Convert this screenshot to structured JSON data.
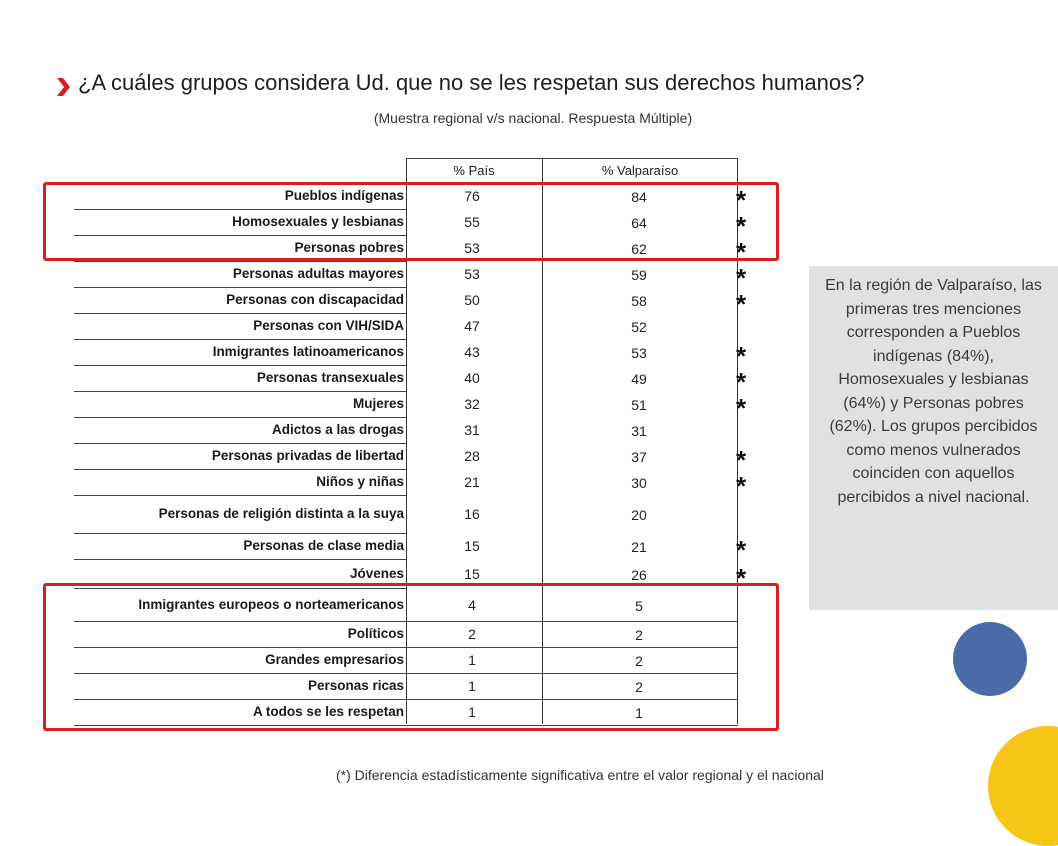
{
  "title": "¿A cuáles grupos considera Ud. que no se les respetan sus derechos humanos?",
  "subtitle": "(Muestra regional v/s nacional. Respuesta Múltiple)",
  "footnote": "(*) Diferencia estadísticamente significativa entre el valor regional y el nacional",
  "note": "En la región de Valparaíso, las primeras tres menciones corresponden a Pueblos indígenas (84%), Homosexuales y lesbianas (64%) y Personas pobres (62%). Los grupos percibidos como menos vulnerados coinciden con aquellos percibidos a nivel nacional.",
  "colors": {
    "highlight": "#d42020",
    "note_bg": "#e1e1e1",
    "circle_blue": "#4a6aa8",
    "circle_yellow": "#f5c518"
  },
  "chart_data": {
    "type": "table",
    "columns": [
      "% País",
      "% Valparaíso"
    ],
    "significance_marker": "*",
    "rows": [
      {
        "category": "Pueblos indígenas",
        "pais": 76,
        "valparaiso": 84,
        "sig": "*"
      },
      {
        "category": "Homosexuales y lesbianas",
        "pais": 55,
        "valparaiso": 64,
        "sig": "*"
      },
      {
        "category": "Personas pobres",
        "pais": 53,
        "valparaiso": 62,
        "sig": "*"
      },
      {
        "category": "Personas adultas mayores",
        "pais": 53,
        "valparaiso": 59,
        "sig": "*"
      },
      {
        "category": "Personas con discapacidad",
        "pais": 50,
        "valparaiso": 58,
        "sig": "*"
      },
      {
        "category": "Personas con VIH/SIDA",
        "pais": 47,
        "valparaiso": 52,
        "sig": ""
      },
      {
        "category": "Inmigrantes latinoamericanos",
        "pais": 43,
        "valparaiso": 53,
        "sig": "*"
      },
      {
        "category": "Personas transexuales",
        "pais": 40,
        "valparaiso": 49,
        "sig": "*"
      },
      {
        "category": "Mujeres",
        "pais": 32,
        "valparaiso": 51,
        "sig": "*"
      },
      {
        "category": "Adictos a las drogas",
        "pais": 31,
        "valparaiso": 31,
        "sig": ""
      },
      {
        "category": "Personas privadas de libertad",
        "pais": 28,
        "valparaiso": 37,
        "sig": "*"
      },
      {
        "category": "Niños y niñas",
        "pais": 21,
        "valparaiso": 30,
        "sig": "*"
      },
      {
        "category": "Personas de religión distinta a la suya",
        "pais": 16,
        "valparaiso": 20,
        "sig": ""
      },
      {
        "category": "Personas de clase media",
        "pais": 15,
        "valparaiso": 21,
        "sig": "*"
      },
      {
        "category": "Jóvenes",
        "pais": 15,
        "valparaiso": 26,
        "sig": "*"
      },
      {
        "category": "Inmigrantes europeos o norteamericanos",
        "pais": 4,
        "valparaiso": 5,
        "sig": ""
      },
      {
        "category": "Políticos",
        "pais": 2,
        "valparaiso": 2,
        "sig": ""
      },
      {
        "category": "Grandes empresarios",
        "pais": 1,
        "valparaiso": 2,
        "sig": ""
      },
      {
        "category": "Personas ricas",
        "pais": 1,
        "valparaiso": 2,
        "sig": ""
      },
      {
        "category": "A todos se les respetan",
        "pais": 1,
        "valparaiso": 1,
        "sig": ""
      }
    ]
  }
}
